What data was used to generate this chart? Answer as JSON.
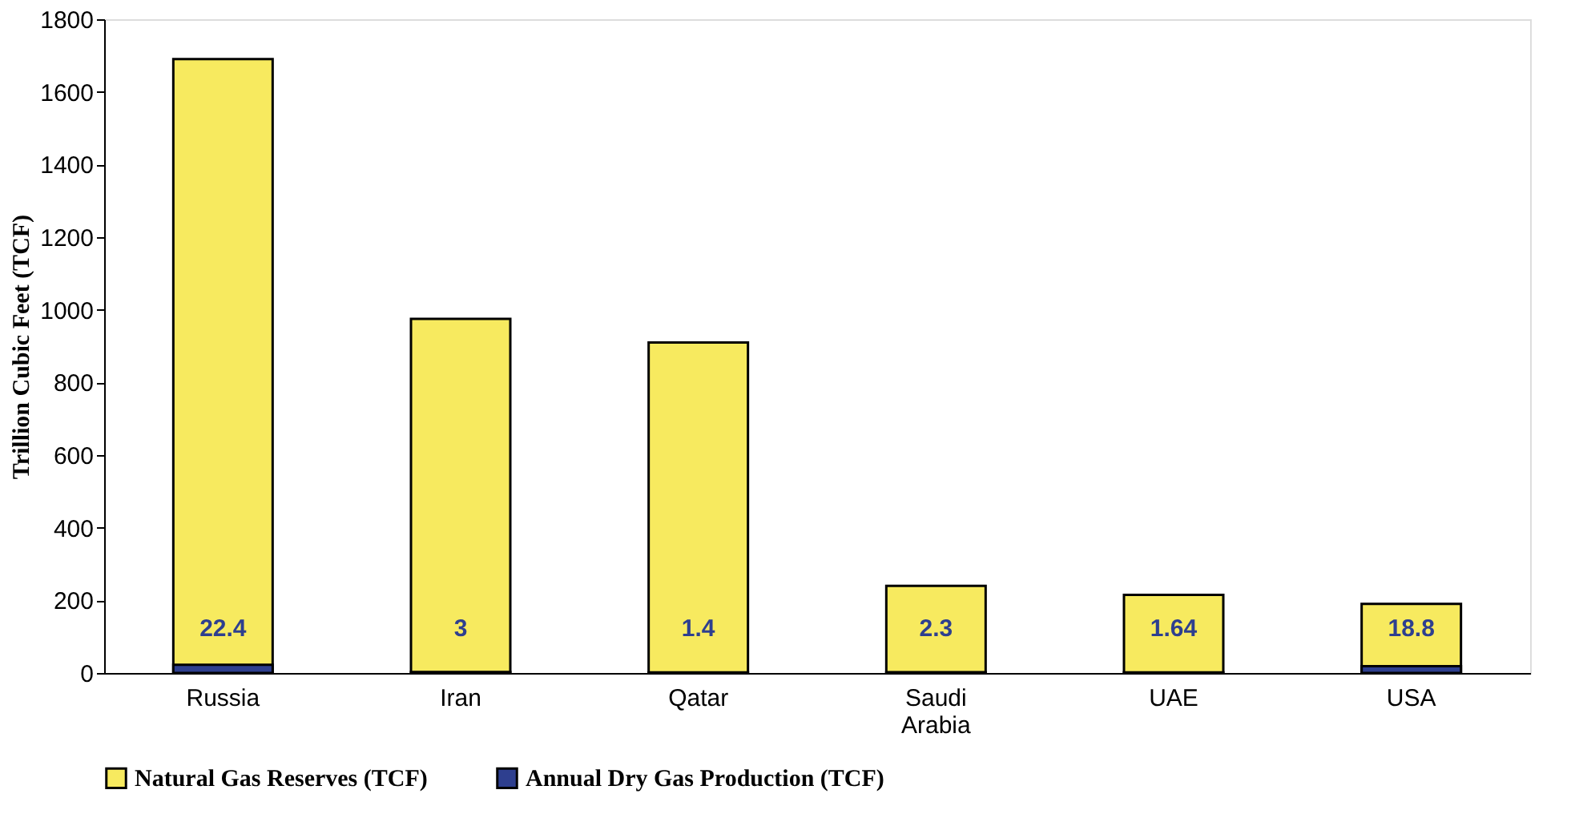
{
  "chart_data": {
    "type": "bar",
    "ylabel": "Trillion Cubic Feet (TCF)",
    "categories": [
      "Russia",
      "Iran",
      "Qatar",
      "Saudi Arabia",
      "UAE",
      "USA"
    ],
    "series": [
      {
        "name": "Natural Gas Reserves (TCF)",
        "color": "#f7ea5f",
        "values": [
          1690,
          975,
          910,
          240,
          215,
          190
        ]
      },
      {
        "name": "Annual Dry Gas Production (TCF)",
        "color": "#2e3f8f",
        "values": [
          22.4,
          3,
          1.4,
          2.3,
          1.64,
          18.8
        ],
        "value_labels": [
          "22.4",
          "3",
          "1.4",
          "2.3",
          "1.64",
          "18.8"
        ]
      }
    ],
    "ylim": [
      0,
      1800
    ],
    "yticks": [
      0,
      200,
      400,
      600,
      800,
      1000,
      1200,
      1400,
      1600,
      1800
    ],
    "grid": false,
    "legend": "bottom"
  }
}
